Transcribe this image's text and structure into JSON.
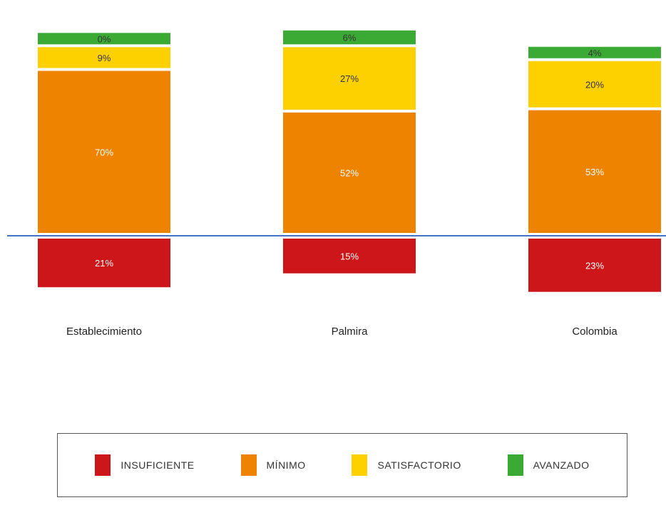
{
  "chart_data": {
    "type": "bar",
    "stacked": true,
    "diverging": true,
    "categories": [
      "Establecimiento",
      "Palmira",
      "Colombia"
    ],
    "series": [
      {
        "name": "INSUFICIENTE",
        "color": "#cc1619",
        "values": [
          21,
          15,
          23
        ],
        "labels": [
          "21%",
          "15%",
          "23%"
        ]
      },
      {
        "name": "MÍNIMO",
        "color": "#ee8300",
        "values": [
          70,
          52,
          53
        ],
        "labels": [
          "70%",
          "52%",
          "53%"
        ]
      },
      {
        "name": "SATISFACTORIO",
        "color": "#fdd000",
        "values": [
          9,
          27,
          20
        ],
        "labels": [
          "9%",
          "27%",
          "20%"
        ]
      },
      {
        "name": "AVANZADO",
        "color": "#3aaa35",
        "values": [
          0,
          6,
          4
        ],
        "labels": [
          "0%",
          "6%",
          "4%"
        ]
      }
    ],
    "baseline_color": "#4472c4",
    "legend_position": "bottom",
    "grid": false
  }
}
